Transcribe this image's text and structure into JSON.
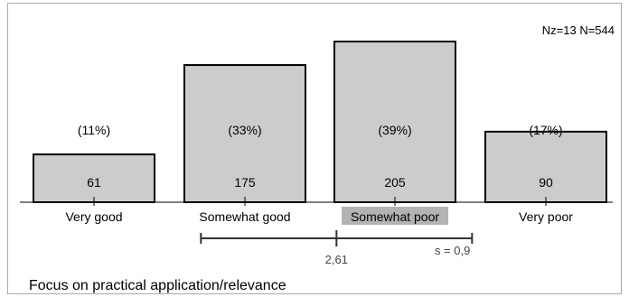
{
  "chart_data": {
    "type": "bar",
    "title": "Focus on practical application/relevance",
    "categories": [
      "Very good",
      "Somewhat good",
      "Somewhat poor",
      "Very poor"
    ],
    "values": [
      61,
      175,
      205,
      90
    ],
    "percent_labels": [
      "(11%)",
      "(33%)",
      "(39%)",
      "(17%)"
    ],
    "highlighted_category_index": 2,
    "stats_label": "Nz=13  N=544",
    "mean": 2.61,
    "mean_label": "2,61",
    "sd": 0.9,
    "sd_label": "s = 0,9",
    "scale": [
      1,
      4
    ],
    "colors": {
      "bar_fill": "#cccccc",
      "bar_stroke": "#000000",
      "highlight_fill": "#b3b3b3",
      "mean_line": "#333333"
    }
  }
}
